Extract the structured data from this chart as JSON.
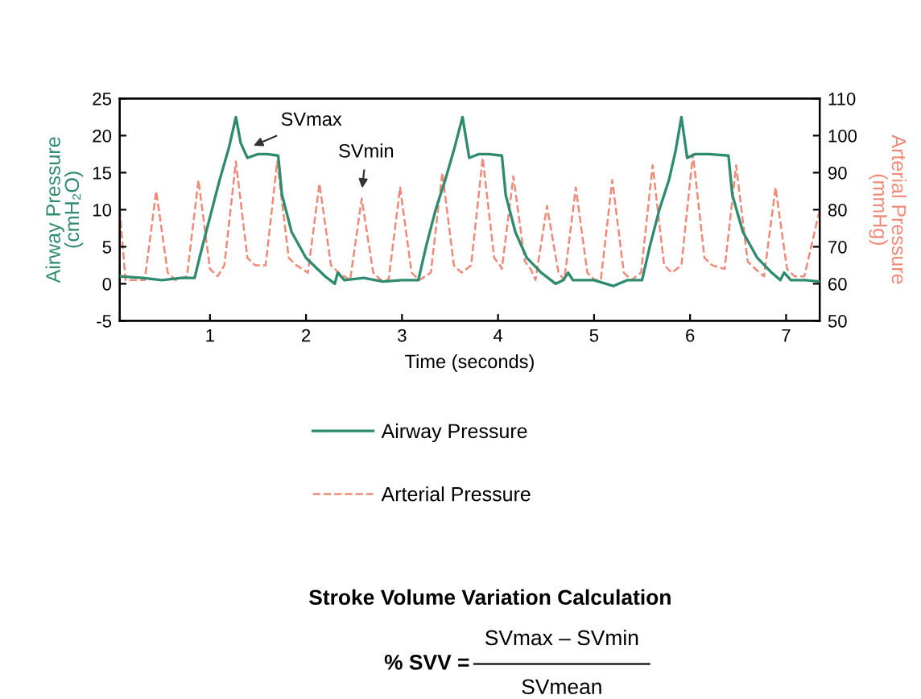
{
  "chart_data": {
    "type": "line",
    "xlabel": "Time (seconds)",
    "ylabel": "Airway Pressure\n(cmH₂O)",
    "y2label": "Arterial Pressure\n(mmHg)",
    "xlim": [
      0.06,
      7.35
    ],
    "xticks": [
      1,
      2,
      3,
      4,
      5,
      6,
      7
    ],
    "ylim": [
      -5,
      25
    ],
    "yticks": [
      -5,
      0,
      5,
      10,
      15,
      20,
      25
    ],
    "y2lim": [
      50,
      110
    ],
    "y2ticks": [
      50,
      60,
      70,
      80,
      90,
      100,
      110
    ],
    "legend": "bottom",
    "grid": false,
    "series": [
      {
        "name": "Airway Pressure",
        "color": "#2e8b6e",
        "line_style": "solid",
        "x": [
          0.06,
          0.3,
          0.5,
          0.7,
          0.84,
          0.9,
          1.0,
          1.1,
          1.2,
          1.27,
          1.32,
          1.39,
          1.5,
          1.6,
          1.71,
          1.75,
          1.85,
          2.0,
          2.2,
          2.3,
          2.33,
          2.4,
          2.6,
          2.8,
          3.0,
          3.17,
          3.25,
          3.35,
          3.45,
          3.55,
          3.63,
          3.7,
          3.8,
          3.9,
          4.04,
          4.08,
          4.18,
          4.3,
          4.45,
          4.6,
          4.68,
          4.73,
          4.78,
          5.0,
          5.2,
          5.35,
          5.5,
          5.58,
          5.68,
          5.78,
          5.85,
          5.91,
          5.97,
          6.05,
          6.2,
          6.4,
          6.44,
          6.55,
          6.7,
          6.85,
          6.94,
          6.98,
          7.05,
          7.2,
          7.35
        ],
        "values": [
          1,
          0.8,
          0.5,
          0.8,
          0.8,
          4,
          9,
          14,
          18.5,
          22.5,
          19,
          17,
          17.5,
          17.5,
          17.3,
          12,
          7,
          3.5,
          1,
          0,
          1.5,
          0.5,
          0.8,
          0.3,
          0.5,
          0.5,
          5,
          10,
          14,
          18.5,
          22.5,
          17,
          17.5,
          17.5,
          17.3,
          12,
          7,
          3.5,
          1.5,
          0,
          0.5,
          1.5,
          0.5,
          0.5,
          -0.3,
          0.5,
          0.5,
          5,
          10,
          14,
          18,
          22.5,
          17,
          17.5,
          17.5,
          17.3,
          12,
          7,
          3.5,
          1.5,
          0.5,
          1.5,
          0.5,
          0.5,
          0.3
        ]
      },
      {
        "name": "Arterial Pressure",
        "color": "#f08a78",
        "line_style": "dashed",
        "axis": "y2",
        "x": [
          0.06,
          0.12,
          0.32,
          0.44,
          0.56,
          0.64,
          0.76,
          0.88,
          1.0,
          1.08,
          1.15,
          1.27,
          1.39,
          1.47,
          1.58,
          1.7,
          1.82,
          1.9,
          2.02,
          2.14,
          2.26,
          2.34,
          2.46,
          2.58,
          2.7,
          2.78,
          2.86,
          2.98,
          3.1,
          3.18,
          3.3,
          3.42,
          3.54,
          3.62,
          3.72,
          3.84,
          3.96,
          4.02,
          4.04,
          4.16,
          4.28,
          4.34,
          4.39,
          4.51,
          4.63,
          4.69,
          4.81,
          4.93,
          5.01,
          5.07,
          5.19,
          5.31,
          5.39,
          5.49,
          5.61,
          5.73,
          5.81,
          5.91,
          6.03,
          6.15,
          6.23,
          6.36,
          6.48,
          6.6,
          6.68,
          6.77,
          6.89,
          7.01,
          7.09,
          7.19,
          7.35
        ],
        "values": [
          80,
          61,
          61,
          85,
          63,
          61,
          62,
          88,
          64,
          62,
          65,
          93,
          67,
          65,
          65,
          93,
          67,
          65,
          63,
          87,
          65,
          63,
          61,
          83,
          63,
          61,
          61,
          86,
          63,
          61,
          63,
          90,
          65,
          63,
          65,
          94,
          67,
          65,
          64,
          89,
          66,
          64,
          61,
          81,
          63,
          61,
          86,
          63,
          61,
          61,
          88,
          63,
          61,
          63,
          92,
          65,
          63,
          65,
          95,
          67,
          65,
          64,
          92,
          66,
          64,
          62,
          86,
          64,
          62,
          62,
          80
        ]
      }
    ],
    "annotations": [
      {
        "text": "SVmax",
        "x": 1.41,
        "y": 18.4
      },
      {
        "text": "SVmin",
        "x": 2.58,
        "y": 12.3
      },
      "Stroke Volume Variation Calculation",
      "% SVV =",
      "SVmax – SVmin",
      "SVmean"
    ]
  }
}
